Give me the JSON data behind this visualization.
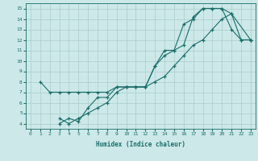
{
  "xlabel": "Humidex (Indice chaleur)",
  "bg_color": "#cce8e8",
  "grid_color": "#aacccc",
  "line_color": "#1a6e6a",
  "xlim": [
    -0.5,
    23.5
  ],
  "ylim": [
    3.5,
    15.5
  ],
  "xticks": [
    0,
    1,
    2,
    3,
    4,
    5,
    6,
    7,
    8,
    9,
    10,
    11,
    12,
    13,
    14,
    15,
    16,
    17,
    18,
    19,
    20,
    21,
    22,
    23
  ],
  "yticks": [
    4,
    5,
    6,
    7,
    8,
    9,
    10,
    11,
    12,
    13,
    14,
    15
  ],
  "line1_x": [
    1,
    2,
    3,
    4,
    5,
    6,
    7,
    8,
    9,
    10,
    11,
    12,
    13,
    14,
    15,
    16,
    17,
    18,
    19,
    20,
    21,
    22,
    23
  ],
  "line1_y": [
    8,
    7,
    7,
    7,
    7,
    7,
    7,
    7,
    7.5,
    7.5,
    7.5,
    7.5,
    9.5,
    10.5,
    11,
    13.5,
    14,
    15,
    15,
    15,
    13,
    12,
    12
  ],
  "line2_x": [
    3,
    4,
    5,
    6,
    7,
    8,
    9,
    10,
    11,
    12,
    13,
    14,
    15,
    16,
    17,
    18,
    19,
    20,
    21,
    22,
    23
  ],
  "line2_y": [
    4.5,
    4,
    4.5,
    5,
    5.5,
    6,
    7,
    7.5,
    7.5,
    7.5,
    8,
    8.5,
    9.5,
    10.5,
    11.5,
    12,
    13,
    14,
    14.5,
    12,
    12
  ],
  "line3_x": [
    3,
    4,
    5,
    6,
    7,
    8,
    9,
    10,
    11,
    12,
    13,
    14,
    15,
    16,
    17,
    18,
    19,
    20,
    21,
    23
  ],
  "line3_y": [
    4,
    4.5,
    4.2,
    5.5,
    6.5,
    6.5,
    7.5,
    7.5,
    7.5,
    7.5,
    9.5,
    11,
    11,
    11.5,
    14.2,
    15,
    15,
    15,
    14.5,
    12
  ]
}
